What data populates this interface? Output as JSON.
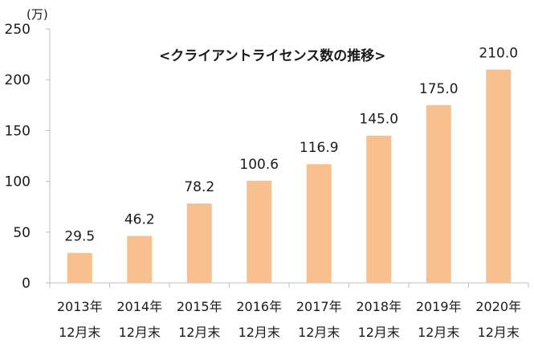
{
  "chart_data": {
    "type": "bar",
    "title": "<クライアントライセンス数の推移>",
    "unit": "(万)",
    "categories": [
      [
        "2013年",
        "12月末"
      ],
      [
        "2014年",
        "12月末"
      ],
      [
        "2015年",
        "12月末"
      ],
      [
        "2016年",
        "12月末"
      ],
      [
        "2017年",
        "12月末"
      ],
      [
        "2018年",
        "12月末"
      ],
      [
        "2019年",
        "12月末"
      ],
      [
        "2020年",
        "12月末"
      ]
    ],
    "values": [
      29.5,
      46.2,
      78.2,
      100.6,
      116.9,
      145.0,
      175.0,
      210.0
    ],
    "data_labels": [
      "29.5",
      "46.2",
      "78.2",
      "100.6",
      "116.9",
      "145.0",
      "175.0",
      "210.0"
    ],
    "ylim": [
      0,
      250
    ],
    "yticks": [
      0,
      50,
      100,
      150,
      200,
      250
    ],
    "grid": false,
    "bar_color": "#f8c08f"
  }
}
